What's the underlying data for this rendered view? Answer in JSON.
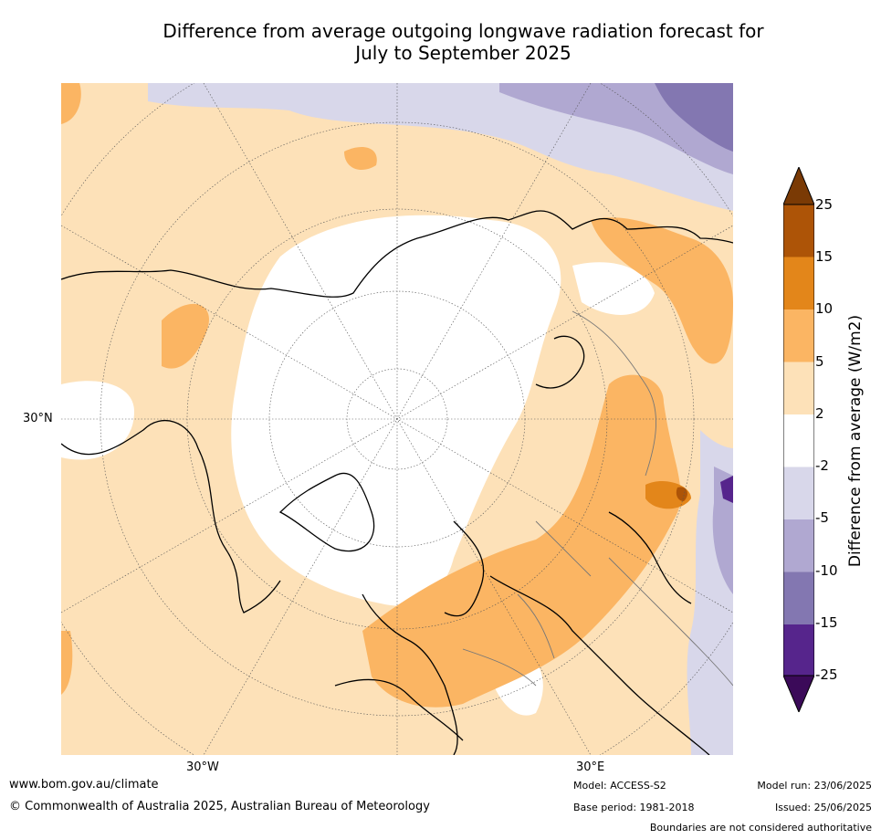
{
  "title_line1": "Difference from average outgoing longwave radiation forecast for",
  "title_line2": "July to September 2025",
  "map": {
    "lat_label": "30°N",
    "lon_label_west": "30°W",
    "lon_label_east": "30°E",
    "projection": "north polar stereographic",
    "colors": {
      "lightorange": "#fde1b8",
      "orange": "#fbb563",
      "darkorange": "#e3861a",
      "brown": "#ad5407",
      "lightpurple": "#d8d7ea",
      "purple": "#b0a8d1",
      "darkpurple": "#8377b1",
      "deeppurple": "#56258c"
    }
  },
  "colorbar": {
    "ticks": [
      "25",
      "15",
      "10",
      "5",
      "2",
      "-2",
      "-5",
      "-10",
      "-15",
      "-25"
    ],
    "colors": [
      "#7a3a05",
      "#ad5407",
      "#e3861a",
      "#fbb563",
      "#fde1b8",
      "#ffffff",
      "#d8d7ea",
      "#b0a8d1",
      "#8377b1",
      "#56258c",
      "#3b0a59"
    ],
    "label": "Difference from average (W/m2)"
  },
  "footer": {
    "website": "www.bom.gov.au/climate",
    "copyright": "© Commonwealth of Australia 2025, Australian Bureau of Meteorology",
    "model": "Model: ACCESS-S2",
    "base_period": "Base period: 1981-2018",
    "model_run": "Model run: 23/06/2025",
    "issued": "Issued: 25/06/2025",
    "disclaimer": "Boundaries are not considered authoritative"
  }
}
